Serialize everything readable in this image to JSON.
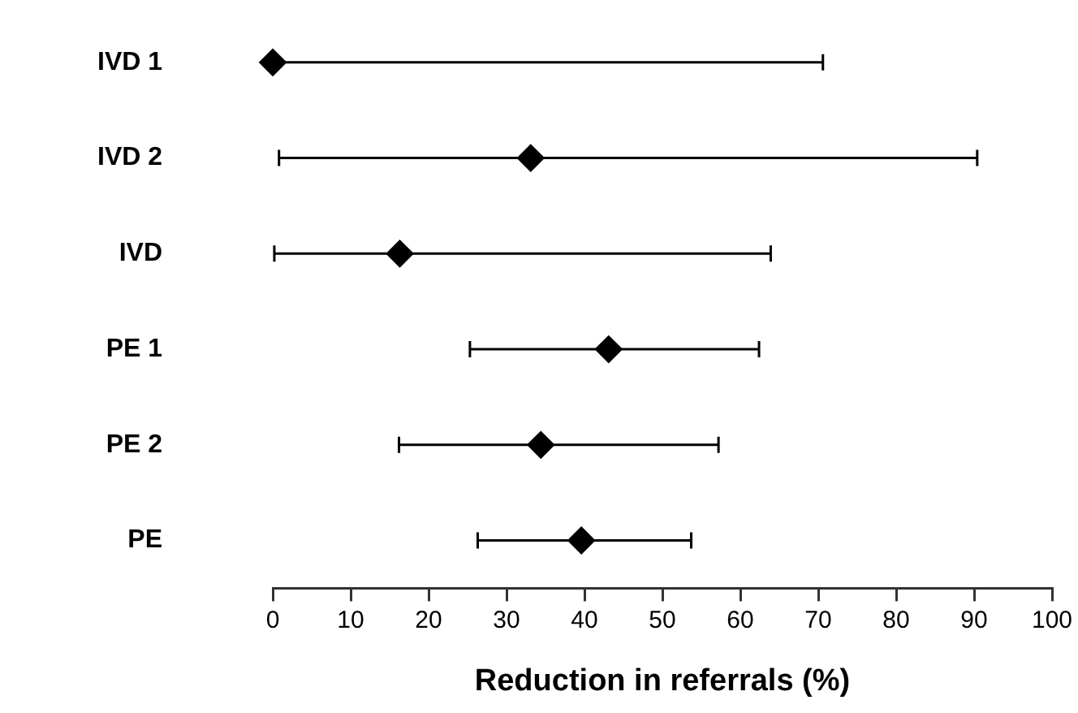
{
  "chart_data": {
    "type": "scatter",
    "orientation": "horizontal",
    "xlabel": "Reduction in referrals (%)",
    "categories": [
      "IVD 1",
      "IVD 2",
      "IVD",
      "PE 1",
      "PE 2",
      "PE"
    ],
    "series": [
      {
        "color": "#000000",
        "values": [
          0,
          33.1,
          16.3,
          43.1,
          34.4,
          39.6
        ],
        "errors": [
          [
            0,
            70.6
          ],
          [
            0.8,
            90.4
          ],
          [
            0.2,
            63.9
          ],
          [
            25.3,
            62.4
          ],
          [
            16.2,
            57.2
          ],
          [
            26.3,
            53.7
          ]
        ]
      }
    ],
    "xlim": [
      0,
      100
    ],
    "xticks": [
      0,
      10,
      20,
      30,
      40,
      50,
      60,
      70,
      80,
      90,
      100
    ],
    "marker": "diamond",
    "grid": false,
    "legend": false
  }
}
